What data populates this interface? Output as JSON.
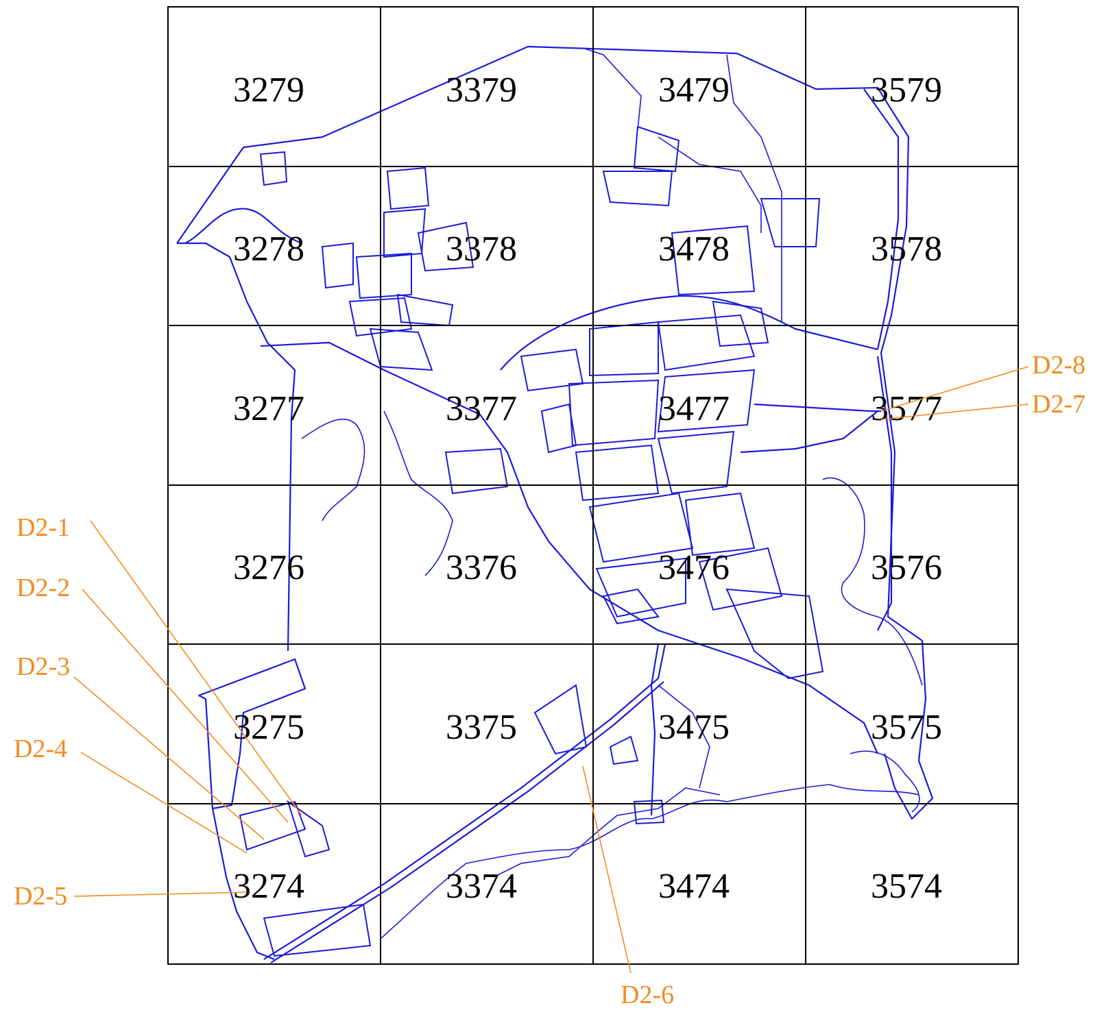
{
  "grid": {
    "rows": [
      [
        "3279",
        "3379",
        "3479",
        "3579"
      ],
      [
        "3278",
        "3378",
        "3478",
        "3578"
      ],
      [
        "3277",
        "3377",
        "3477",
        "3577"
      ],
      [
        "3276",
        "3376",
        "3476",
        "3576"
      ],
      [
        "3275",
        "3375",
        "3475",
        "3575"
      ],
      [
        "3274",
        "3374",
        "3474",
        "3574"
      ]
    ]
  },
  "callouts": [
    {
      "id": "D2-1",
      "label": "D2-1"
    },
    {
      "id": "D2-2",
      "label": "D2-2"
    },
    {
      "id": "D2-3",
      "label": "D2-3"
    },
    {
      "id": "D2-4",
      "label": "D2-4"
    },
    {
      "id": "D2-5",
      "label": "D2-5"
    },
    {
      "id": "D2-6",
      "label": "D2-6"
    },
    {
      "id": "D2-7",
      "label": "D2-7"
    },
    {
      "id": "D2-8",
      "label": "D2-8"
    }
  ],
  "colors": {
    "roads": "#1a1adc",
    "grid": "#000000",
    "callouts": "#f28a1e"
  }
}
